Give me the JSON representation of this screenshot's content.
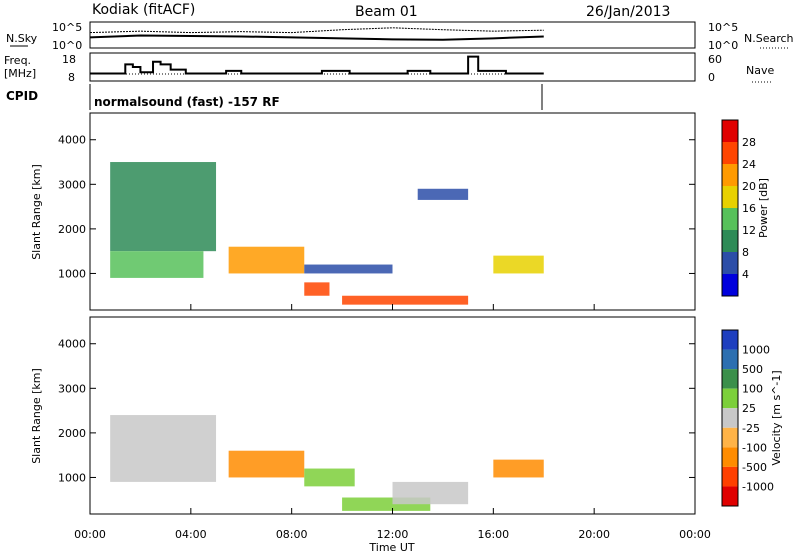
{
  "header": {
    "station": "Kodiak (fitACF)",
    "beam": "Beam 01",
    "date": "26/Jan/2013"
  },
  "summary_panels": {
    "nsky_label": "N.Sky",
    "nsky_ticks": [
      "10^5",
      "10^0"
    ],
    "nsearch_label": "N.Search",
    "nsearch_ticks": [
      "10^5",
      "10^0"
    ],
    "freq_label_1": "Freq.",
    "freq_label_2": "[MHz]",
    "freq_ticks": [
      "18",
      "8"
    ],
    "nave_label": "Nave",
    "nave_ticks": [
      "60",
      "0"
    ],
    "cpid_label": "CPID",
    "cpid_text": "normalsound (fast) -157 RF"
  },
  "x_axis": {
    "label": "Time UT",
    "ticks": [
      "00:00",
      "04:00",
      "08:00",
      "12:00",
      "16:00",
      "20:00",
      "00:00"
    ]
  },
  "power_panel": {
    "ylabel": "Slant Range [km]",
    "yticks": [
      "4000",
      "3000",
      "2000",
      "1000"
    ],
    "colorbar_label": "Power [dB]",
    "colorbar_ticks": [
      "28",
      "24",
      "20",
      "16",
      "12",
      "8",
      "4"
    ],
    "colors": [
      "#0000dd",
      "#2c4ea8",
      "#2e8b57",
      "#57c15a",
      "#e8d100",
      "#ff9a00",
      "#ff4500",
      "#e00000"
    ]
  },
  "velocity_panel": {
    "ylabel": "Slant Range [km]",
    "yticks": [
      "4000",
      "3000",
      "2000",
      "1000"
    ],
    "colorbar_label": "Velocity [m s^-1]",
    "colorbar_ticks": [
      "1000",
      "500",
      "100",
      "25",
      "-25",
      "-100",
      "-500",
      "-1000"
    ],
    "colors": [
      "#1f3fbf",
      "#2c6fb0",
      "#3a8f4a",
      "#7ccf3a",
      "#c8c8c8",
      "#ffb347",
      "#ff8c00",
      "#ff4000",
      "#e00000"
    ]
  },
  "chart_data": [
    {
      "type": "line",
      "title": "Kodiak (fitACF)  Beam 01  26/Jan/2013",
      "x_unit": "hours UT",
      "xlim": [
        0,
        24
      ],
      "series": [
        {
          "name": "N.Sky",
          "x": [
            0,
            2,
            4,
            6,
            8,
            10,
            12,
            14,
            16,
            18
          ],
          "y": [
            2.0,
            2.4,
            2.3,
            2.2,
            2.0,
            1.8,
            1.6,
            1.5,
            1.8,
            2.2
          ]
        },
        {
          "name": "N.Search",
          "x": [
            0,
            2,
            4,
            6,
            8,
            10,
            12,
            14,
            16,
            18
          ],
          "y": [
            3.0,
            3.3,
            3.0,
            3.2,
            3.0,
            3.6,
            4.0,
            3.6,
            3.3,
            3.5
          ]
        }
      ]
    },
    {
      "type": "line",
      "title": "Freq. / Nave",
      "xlim": [
        0,
        24
      ],
      "ylim": [
        8,
        18
      ],
      "series": [
        {
          "name": "Freq. [MHz]",
          "x": [
            0,
            1.4,
            1.7,
            2.0,
            2.5,
            2.8,
            3.2,
            3.8,
            5.4,
            6.0,
            7.6,
            9.2,
            10.3,
            12.6,
            13.5,
            15.0,
            15.4,
            16.5,
            18.0
          ],
          "y": [
            10.5,
            14,
            13,
            11,
            15,
            14,
            12,
            10.5,
            11.5,
            10.5,
            10.5,
            11.5,
            10.5,
            11.5,
            10.5,
            17,
            11.5,
            10.5,
            10.5
          ]
        }
      ]
    },
    {
      "type": "heatmap",
      "title": "Power [dB]",
      "xlabel": "Time UT",
      "ylabel": "Slant Range [km]",
      "xlim": [
        0,
        24
      ],
      "ylim": [
        180,
        4600
      ],
      "cells": [
        {
          "x0": 0.8,
          "x1": 5.0,
          "y0": 1500,
          "y1": 3500,
          "v": 8
        },
        {
          "x0": 0.8,
          "x1": 4.5,
          "y0": 900,
          "y1": 1500,
          "v": 14
        },
        {
          "x0": 5.5,
          "x1": 8.5,
          "y0": 1000,
          "y1": 1600,
          "v": 22
        },
        {
          "x0": 8.5,
          "x1": 12.0,
          "y0": 1000,
          "y1": 1200,
          "v": 6
        },
        {
          "x0": 8.5,
          "x1": 9.5,
          "y0": 500,
          "y1": 800,
          "v": 26
        },
        {
          "x0": 10.0,
          "x1": 15.0,
          "y0": 300,
          "y1": 500,
          "v": 24
        },
        {
          "x0": 13.0,
          "x1": 15.0,
          "y0": 2650,
          "y1": 2900,
          "v": 6
        },
        {
          "x0": 16.0,
          "x1": 18.0,
          "y0": 1000,
          "y1": 1400,
          "v": 18
        }
      ]
    },
    {
      "type": "heatmap",
      "title": "Velocity [m s^-1]",
      "xlabel": "Time UT",
      "ylabel": "Slant Range [km]",
      "xlim": [
        0,
        24
      ],
      "ylim": [
        180,
        4600
      ],
      "cells": [
        {
          "x0": 0.8,
          "x1": 5.0,
          "y0": 900,
          "y1": 2400,
          "v": 0
        },
        {
          "x0": 5.5,
          "x1": 8.5,
          "y0": 1000,
          "y1": 1600,
          "v": -300
        },
        {
          "x0": 8.5,
          "x1": 10.5,
          "y0": 800,
          "y1": 1200,
          "v": 100
        },
        {
          "x0": 10.0,
          "x1": 13.5,
          "y0": 250,
          "y1": 550,
          "v": 60
        },
        {
          "x0": 12.0,
          "x1": 15.0,
          "y0": 400,
          "y1": 900,
          "v": 0
        },
        {
          "x0": 16.0,
          "x1": 18.0,
          "y0": 1000,
          "y1": 1400,
          "v": -150
        }
      ]
    }
  ]
}
